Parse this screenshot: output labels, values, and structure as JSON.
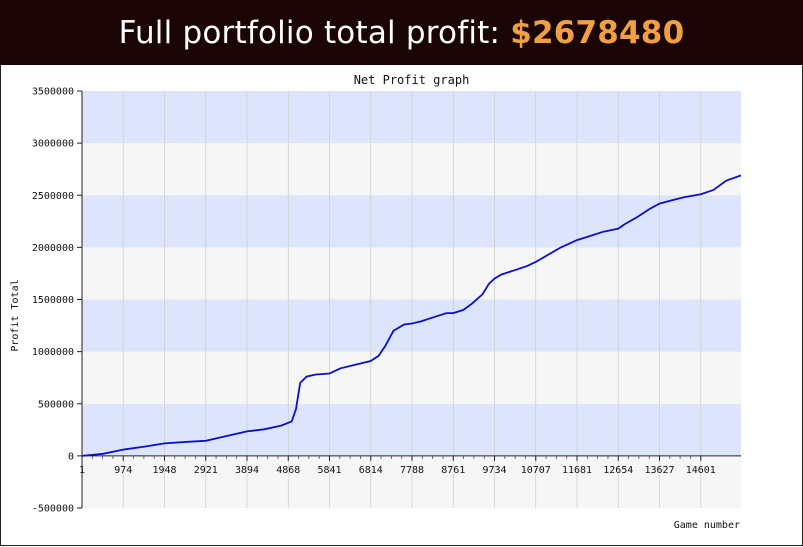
{
  "banner": {
    "prefix": "Full portfolio total profit: ",
    "amount": "$2678480",
    "amount_color": "#f0a040",
    "background": "#1a0404"
  },
  "chart_data": {
    "type": "line",
    "title": "Net Profit graph",
    "xlabel": "Game number",
    "ylabel": "Profit Total",
    "xlim": [
      1,
      15550
    ],
    "ylim": [
      -500000,
      3500000
    ],
    "x_ticks": [
      1,
      974,
      1948,
      2921,
      3894,
      4868,
      5841,
      6814,
      7788,
      8761,
      9734,
      10707,
      11681,
      12654,
      13627,
      14601
    ],
    "y_ticks": [
      -500000,
      0,
      500000,
      1000000,
      1500000,
      2000000,
      2500000,
      3000000,
      3500000
    ],
    "band_colors": [
      "#dde5fc",
      "#f6f6f6"
    ],
    "line_color": "#0a10c8",
    "grid": true,
    "series": [
      {
        "x": [
          1,
          500,
          974,
          1500,
          1948,
          2500,
          2921,
          3400,
          3894,
          4300,
          4700,
          4950,
          5050,
          5150,
          5300,
          5500,
          5841,
          6100,
          6400,
          6814,
          7000,
          7150,
          7350,
          7600,
          7788,
          8000,
          8300,
          8600,
          8761,
          9000,
          9200,
          9450,
          9600,
          9734,
          9900,
          10200,
          10500,
          10707,
          11000,
          11300,
          11681,
          12000,
          12300,
          12654,
          12800,
          13100,
          13400,
          13627,
          13900,
          14200,
          14601,
          14900,
          15200,
          15550
        ],
        "y": [
          0,
          20000,
          60000,
          90000,
          120000,
          135000,
          145000,
          190000,
          235000,
          255000,
          290000,
          330000,
          450000,
          700000,
          760000,
          780000,
          790000,
          840000,
          870000,
          910000,
          960000,
          1050000,
          1200000,
          1260000,
          1270000,
          1290000,
          1330000,
          1370000,
          1370000,
          1400000,
          1460000,
          1550000,
          1650000,
          1700000,
          1740000,
          1780000,
          1820000,
          1860000,
          1930000,
          2000000,
          2070000,
          2110000,
          2150000,
          2180000,
          2220000,
          2290000,
          2370000,
          2420000,
          2450000,
          2480000,
          2510000,
          2550000,
          2640000,
          2690000
        ]
      }
    ]
  }
}
